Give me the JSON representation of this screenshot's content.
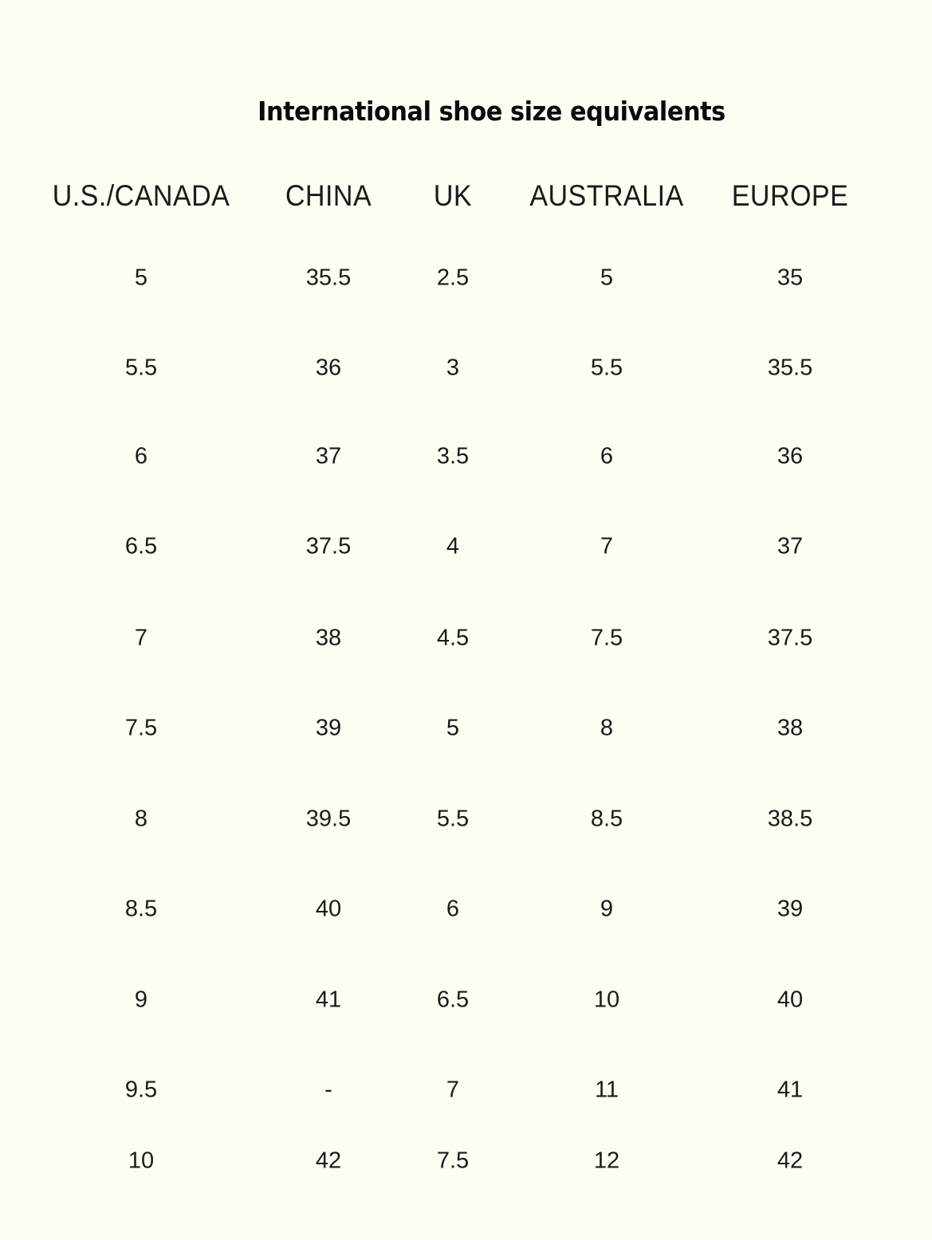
{
  "title": "International shoe size equivalents",
  "headers": [
    "U.S./CANADA",
    "CHINA",
    "UK",
    "AUSTRALIA",
    "EUROPE"
  ],
  "rows": [
    [
      "5",
      "35.5",
      "2.5",
      "5",
      "35"
    ],
    [
      "5.5",
      "36",
      "3",
      "5.5",
      "35.5"
    ],
    [
      "6",
      "37",
      "3.5",
      "6",
      "36"
    ],
    [
      "6.5",
      "37.5",
      "4",
      "7",
      "37"
    ],
    [
      "7",
      "38",
      "4.5",
      "7.5",
      "37.5"
    ],
    [
      "7.5",
      "39",
      "5",
      "8",
      "38"
    ],
    [
      "8",
      "39.5",
      "5.5",
      "8.5",
      "38.5"
    ],
    [
      "8.5",
      "40",
      "6",
      "9",
      "39"
    ],
    [
      "9",
      "41",
      "6.5",
      "10",
      "40"
    ],
    [
      "9.5",
      "-",
      "7",
      "11",
      "41"
    ],
    [
      "10",
      "42",
      "7.5",
      "12",
      "42"
    ]
  ]
}
